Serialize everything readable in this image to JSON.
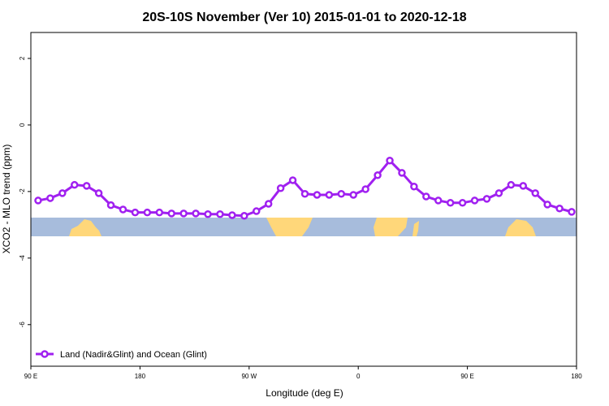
{
  "chart_data": {
    "type": "line",
    "title": "20S-10S November (Ver 10)   2015-01-01 to 2020-12-18",
    "x_label": "Longitude (deg E)",
    "y_label": "XCO2 - MLO trend (ppm)",
    "x": [
      96,
      106,
      116,
      126,
      136,
      146,
      156,
      166,
      176,
      186,
      196,
      206,
      216,
      226,
      236,
      246,
      256,
      266,
      276,
      286,
      296,
      306,
      316,
      326,
      336,
      346,
      356,
      366,
      376,
      386,
      396,
      406,
      416,
      426,
      436,
      446,
      456,
      466,
      476,
      486,
      496,
      506,
      516,
      526,
      536
    ],
    "series": [
      {
        "name": "Land (Nadir&Glint) and Ocean (Glint)",
        "color": "#a020f0",
        "values": [
          -2.27,
          -2.2,
          -2.05,
          -1.8,
          -1.83,
          -2.05,
          -2.41,
          -2.54,
          -2.63,
          -2.63,
          -2.63,
          -2.66,
          -2.66,
          -2.66,
          -2.68,
          -2.68,
          -2.71,
          -2.73,
          -2.59,
          -2.37,
          -1.9,
          -1.66,
          -2.07,
          -2.1,
          -2.1,
          -2.07,
          -2.1,
          -1.93,
          -1.51,
          -1.07,
          -1.44,
          -1.85,
          -2.15,
          -2.27,
          -2.34,
          -2.34,
          -2.27,
          -2.22,
          -2.05,
          -1.8,
          -1.83,
          -2.05,
          -2.39,
          -2.51,
          -2.61
        ]
      }
    ],
    "xlim": [
      90,
      540
    ],
    "xticks": [
      {
        "value": 90,
        "label": "90 E"
      },
      {
        "value": 180,
        "label": "180"
      },
      {
        "value": 270,
        "label": "90 W"
      },
      {
        "value": 360,
        "label": "0"
      },
      {
        "value": 450,
        "label": "90 E"
      },
      {
        "value": 540,
        "label": "180"
      }
    ],
    "ylim": [
      -7.25,
      2.78
    ],
    "yticks": [
      2,
      0,
      -2,
      -4,
      -6
    ],
    "legend": "bottom-left"
  }
}
